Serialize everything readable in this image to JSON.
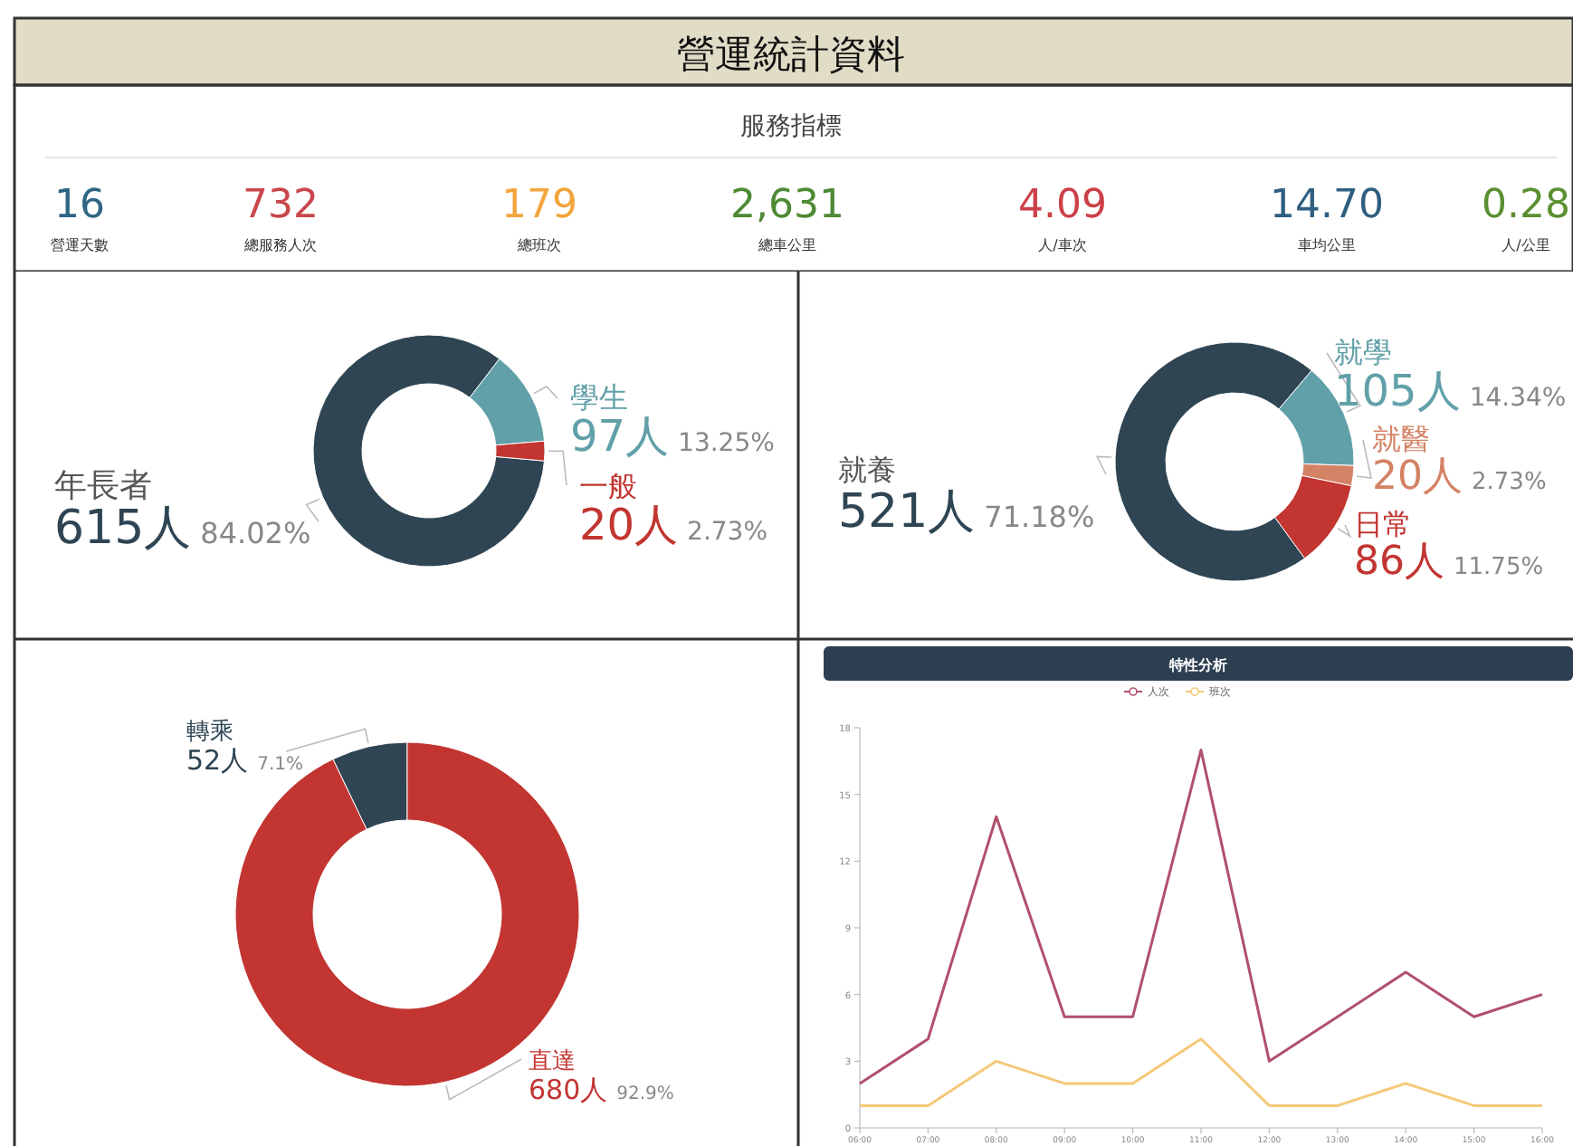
{
  "chart_data": [
    {
      "type": "other",
      "title": "營運統計資料",
      "subtitle": "服務指標",
      "categories": [
        "營運天數",
        "總服務人次",
        "總班次",
        "總車公里",
        "人/車次",
        "車均公里",
        "人/公里"
      ],
      "values": [
        16,
        732,
        179,
        2631,
        4.09,
        14.7,
        0.28
      ],
      "value_labels": [
        "16",
        "732",
        "179",
        "2,631",
        "4.09",
        "14.70",
        "0.28"
      ],
      "colors": [
        "#2f6585",
        "#c9474c",
        "#f2a53c",
        "#4d8a34",
        "#cc4048",
        "#2f5f80",
        "#5a8f32"
      ]
    },
    {
      "type": "donut",
      "categories": [
        "年長者",
        "學生",
        "一般"
      ],
      "values": [
        615,
        97,
        20
      ],
      "value_labels": [
        "615人 84.02%",
        "97人 13.25%",
        "20人 2.73%"
      ],
      "colors": [
        "#2f4554",
        "#61a0a8",
        "#c23531"
      ]
    },
    {
      "type": "donut",
      "categories": [
        "就養",
        "就學",
        "就醫",
        "日常"
      ],
      "values": [
        521,
        105,
        20,
        86
      ],
      "value_labels": [
        "521人 71.18%",
        "105人 14.34%",
        "20人 2.73%",
        "86人 11.75%"
      ],
      "colors": [
        "#2f4554",
        "#61a0a8",
        "#d48265",
        "#c23531"
      ]
    },
    {
      "type": "donut",
      "categories": [
        "轉乘",
        "直達"
      ],
      "values": [
        52,
        680
      ],
      "value_labels": [
        "52人 7.1%",
        "680人 92.9%"
      ],
      "colors": [
        "#2f4554",
        "#c23531"
      ]
    },
    {
      "type": "line",
      "title": "特性分析",
      "categories": [
        "06:00",
        "07:00",
        "08:00",
        "09:00",
        "10:00",
        "11:00",
        "12:00",
        "13:00",
        "14:00",
        "15:00",
        "16:00"
      ],
      "ylim": [
        0,
        18
      ],
      "yticks": [
        0,
        3,
        6,
        9,
        12,
        15,
        18
      ],
      "legend": "top",
      "series": [
        {
          "name": "人次",
          "color": "#b0506c",
          "values": [
            2,
            4,
            14,
            5,
            5,
            17,
            3,
            5,
            7,
            5,
            6
          ]
        },
        {
          "name": "班次",
          "color": "#f5c97a",
          "values": [
            1,
            1,
            3,
            2,
            2,
            4,
            1,
            1,
            2,
            1,
            1
          ]
        }
      ]
    }
  ]
}
